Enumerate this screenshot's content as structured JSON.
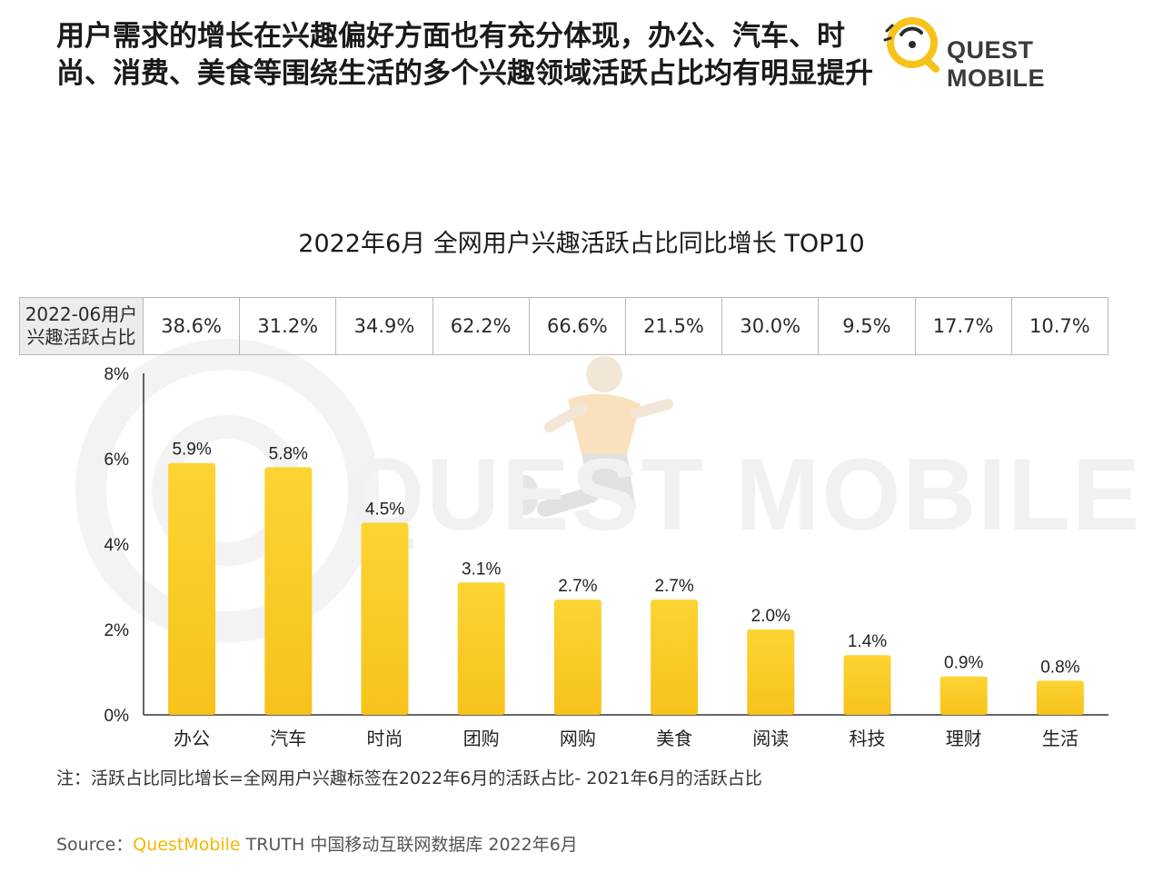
{
  "headline": "用户需求的增长在兴趣偏好方面也有充分体现，办公、汽车、时尚、消费、美食等围绕生活的多个兴趣领域活跃占比均有明显提升",
  "brand": {
    "name": "QUEST MOBILE",
    "logo_icon": "quest-mobile-logo"
  },
  "watermark": {
    "text": "QUEST MOBILE"
  },
  "colors": {
    "bar": "#f7c21b",
    "bar_top": "#fcd433",
    "axis": "#333333",
    "table_head_bg": "#ececec"
  },
  "table": {
    "header": "2022-06用户兴趣活跃占比",
    "values": [
      "38.6%",
      "31.2%",
      "34.9%",
      "62.2%",
      "66.6%",
      "21.5%",
      "30.0%",
      "9.5%",
      "17.7%",
      "10.7%"
    ]
  },
  "chart_data": {
    "type": "bar",
    "title": "2022年6月 全网用户兴趣活跃占比同比增长 TOP10",
    "categories": [
      "办公",
      "汽车",
      "时尚",
      "团购",
      "网购",
      "美食",
      "阅读",
      "科技",
      "理财",
      "生活"
    ],
    "values": [
      5.9,
      5.8,
      4.5,
      3.1,
      2.7,
      2.7,
      2.0,
      1.4,
      0.9,
      0.8
    ],
    "value_labels": [
      "5.9%",
      "5.8%",
      "4.5%",
      "3.1%",
      "2.7%",
      "2.7%",
      "2.0%",
      "1.4%",
      "0.9%",
      "0.8%"
    ],
    "yticks": [
      "0%",
      "2%",
      "4%",
      "6%",
      "8%"
    ],
    "ytick_values": [
      0,
      2,
      4,
      6,
      8
    ],
    "ylim": [
      0,
      8
    ],
    "xlabel": "",
    "ylabel": "",
    "grid": false,
    "legend": "none"
  },
  "note": "注：活跃占比同比增长=全网用户兴趣标签在2022年6月的活跃占比- 2021年6月的活跃占比",
  "source": {
    "prefix": "Source：",
    "brand": "QuestMobile",
    "rest": " TRUTH 中国移动互联网数据库 2022年6月"
  }
}
